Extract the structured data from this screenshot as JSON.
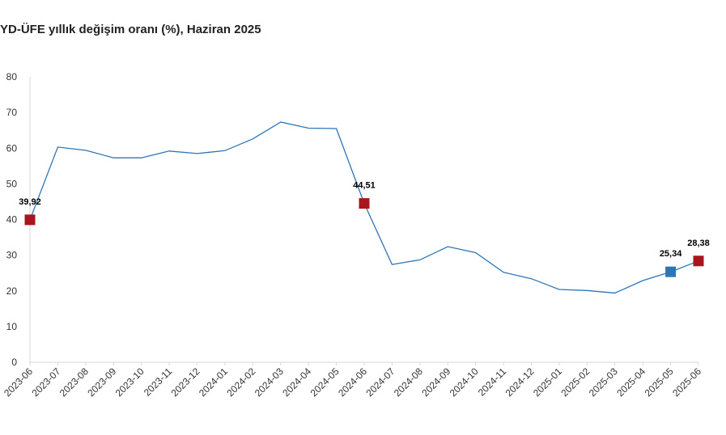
{
  "chart_data": {
    "type": "line",
    "title": "YD-ÜFE yıllık değişim oranı (%), Haziran 2025",
    "categories": [
      "2023-06",
      "2023-07",
      "2023-08",
      "2023-09",
      "2023-10",
      "2023-11",
      "2023-12",
      "2024-01",
      "2024-02",
      "2024-03",
      "2024-04",
      "2024-05",
      "2024-06",
      "2024-07",
      "2024-08",
      "2024-09",
      "2024-10",
      "2024-11",
      "2024-12",
      "2025-01",
      "2025-02",
      "2025-03",
      "2025-04",
      "2025-05",
      "2025-06"
    ],
    "series": [
      {
        "values": [
          39.92,
          60.3,
          59.4,
          57.3,
          57.3,
          59.2,
          58.5,
          59.3,
          62.6,
          67.3,
          65.6,
          65.5,
          44.51,
          27.4,
          28.7,
          32.4,
          30.7,
          25.2,
          23.4,
          20.4,
          20.1,
          19.4,
          22.9,
          25.34,
          28.38
        ]
      }
    ],
    "ylim": [
      0,
      80
    ],
    "yticks": [
      0,
      10,
      20,
      30,
      40,
      50,
      60,
      70,
      80
    ],
    "grid": false,
    "line_color": "#2e75b6",
    "markers": [
      {
        "index": 0,
        "label": "39,92",
        "color": "#a8151c"
      },
      {
        "index": 12,
        "label": "44,51",
        "color": "#a8151c"
      },
      {
        "index": 23,
        "label": "25,34",
        "color": "#2e75b6"
      },
      {
        "index": 24,
        "label": "28,38",
        "color": "#a8151c"
      }
    ]
  }
}
